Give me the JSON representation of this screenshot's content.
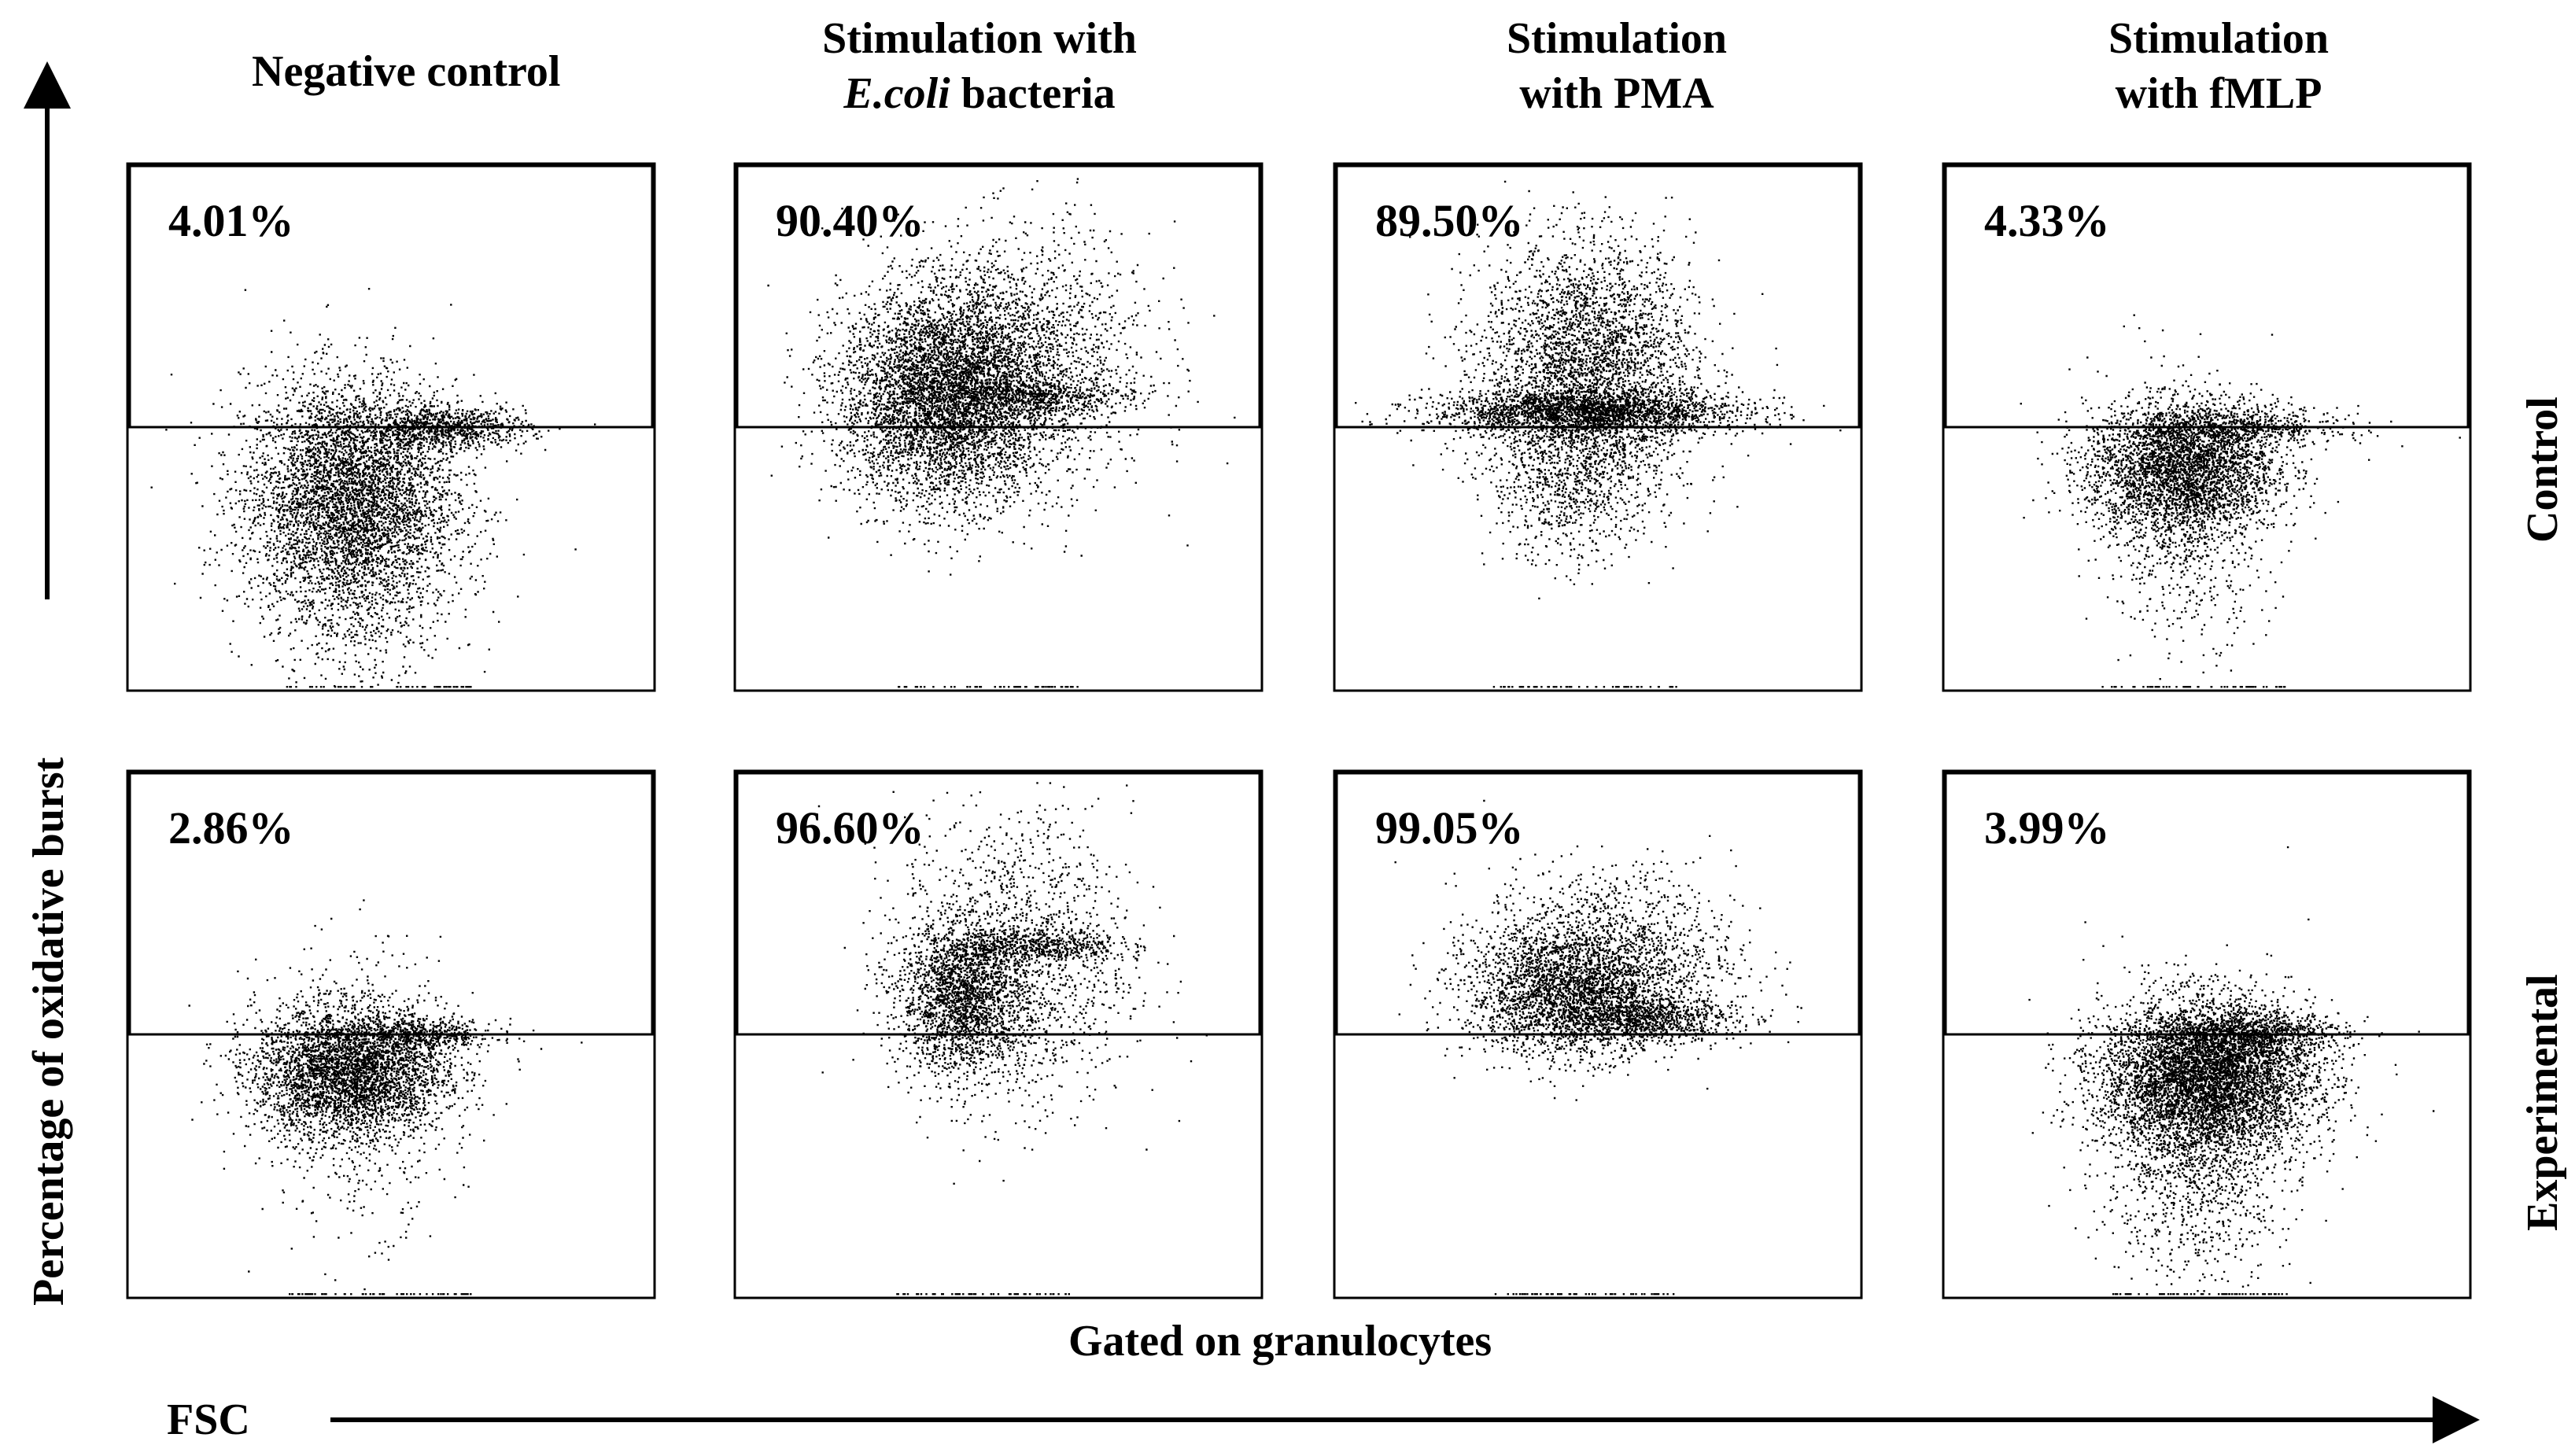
{
  "chart_data": {
    "type": "scatter",
    "columns": [
      {
        "line1": "Negative control",
        "line2": ""
      },
      {
        "line1": "Stimulation with",
        "line2_italic": "E.coli",
        "line2": " bacteria"
      },
      {
        "line1": "Stimulation",
        "line2": "with PMA"
      },
      {
        "line1": "Stimulation",
        "line2": "with fMLP"
      }
    ],
    "rows": [
      "Control",
      "Experimental"
    ],
    "ylabel": "Percentage of oxidative burst",
    "xlabel": "FSC",
    "bottom_caption": "Gated on granulocytes",
    "panels": [
      {
        "row": "Control",
        "column": "Negative control",
        "percent": "4.01%",
        "clusters": [
          {
            "x": 0.42,
            "y": 0.37,
            "sx": 0.1,
            "sy": 0.11,
            "n": 4500
          },
          {
            "x": 0.6,
            "y": 0.5,
            "sx": 0.08,
            "sy": 0.02,
            "n": 900
          },
          {
            "x": 0.44,
            "y": 0.22,
            "sx": 0.09,
            "sy": 0.12,
            "n": 700
          }
        ]
      },
      {
        "row": "Control",
        "column": "Stimulation with E.coli bacteria",
        "percent": "90.40%",
        "clusters": [
          {
            "x": 0.4,
            "y": 0.56,
            "sx": 0.1,
            "sy": 0.1,
            "n": 6500
          },
          {
            "x": 0.55,
            "y": 0.64,
            "sx": 0.12,
            "sy": 0.12,
            "n": 1500
          },
          {
            "x": 0.57,
            "y": 0.56,
            "sx": 0.09,
            "sy": 0.015,
            "n": 500
          }
        ]
      },
      {
        "row": "Control",
        "column": "Stimulation with PMA",
        "percent": "89.50%",
        "clusters": [
          {
            "x": 0.48,
            "y": 0.61,
            "sx": 0.1,
            "sy": 0.12,
            "n": 3500
          },
          {
            "x": 0.48,
            "y": 0.53,
            "sx": 0.15,
            "sy": 0.02,
            "n": 2000
          },
          {
            "x": 0.45,
            "y": 0.4,
            "sx": 0.08,
            "sy": 0.08,
            "n": 700
          }
        ]
      },
      {
        "row": "Control",
        "column": "Stimulation with fMLP",
        "percent": "4.33%",
        "clusters": [
          {
            "x": 0.45,
            "y": 0.42,
            "sx": 0.09,
            "sy": 0.06,
            "n": 3000
          },
          {
            "x": 0.55,
            "y": 0.5,
            "sx": 0.1,
            "sy": 0.02,
            "n": 700
          },
          {
            "x": 0.46,
            "y": 0.35,
            "sx": 0.08,
            "sy": 0.12,
            "n": 900
          }
        ]
      },
      {
        "row": "Experimental",
        "column": "Negative control",
        "percent": "2.86%",
        "clusters": [
          {
            "x": 0.42,
            "y": 0.43,
            "sx": 0.09,
            "sy": 0.06,
            "n": 3500
          },
          {
            "x": 0.56,
            "y": 0.5,
            "sx": 0.07,
            "sy": 0.015,
            "n": 500
          },
          {
            "x": 0.43,
            "y": 0.4,
            "sx": 0.09,
            "sy": 0.13,
            "n": 700
          }
        ]
      },
      {
        "row": "Experimental",
        "column": "Stimulation with E.coli bacteria",
        "percent": "96.60%",
        "clusters": [
          {
            "x": 0.43,
            "y": 0.57,
            "sx": 0.06,
            "sy": 0.07,
            "n": 2000
          },
          {
            "x": 0.53,
            "y": 0.64,
            "sx": 0.11,
            "sy": 0.14,
            "n": 1500
          },
          {
            "x": 0.57,
            "y": 0.67,
            "sx": 0.08,
            "sy": 0.015,
            "n": 500
          }
        ]
      },
      {
        "row": "Experimental",
        "column": "Stimulation with PMA",
        "percent": "99.05%",
        "clusters": [
          {
            "x": 0.45,
            "y": 0.58,
            "sx": 0.1,
            "sy": 0.06,
            "n": 2500
          },
          {
            "x": 0.58,
            "y": 0.53,
            "sx": 0.09,
            "sy": 0.02,
            "n": 900
          },
          {
            "x": 0.52,
            "y": 0.66,
            "sx": 0.12,
            "sy": 0.08,
            "n": 1200
          }
        ]
      },
      {
        "row": "Experimental",
        "column": "Stimulation with fMLP",
        "percent": "3.99%",
        "clusters": [
          {
            "x": 0.5,
            "y": 0.42,
            "sx": 0.1,
            "sy": 0.07,
            "n": 7000
          },
          {
            "x": 0.58,
            "y": 0.5,
            "sx": 0.09,
            "sy": 0.02,
            "n": 900
          },
          {
            "x": 0.48,
            "y": 0.3,
            "sx": 0.09,
            "sy": 0.13,
            "n": 1500
          }
        ]
      }
    ]
  }
}
